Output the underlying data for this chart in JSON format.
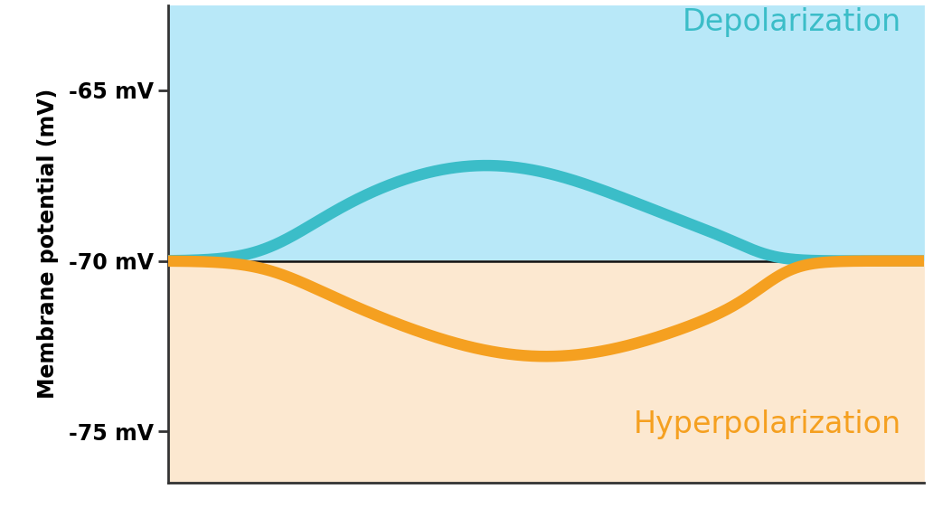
{
  "ylabel": "Membrane potential (mV)",
  "yticks": [
    -75,
    -70,
    -65
  ],
  "ytick_labels": [
    "-75 mV",
    "-70 mV",
    "-65 mV"
  ],
  "ylim": [
    -76.5,
    -62.5
  ],
  "xlim": [
    0,
    10
  ],
  "resting_potential": -70,
  "depolarization_color_fill": "#b8e8f8",
  "hyperpolarization_color_fill": "#fce8d0",
  "depolarization_line_color": "#3bbdc8",
  "hyperpolarization_line_color": "#f5a020",
  "baseline_color": "#111111",
  "depolarization_label": "Depolarization",
  "hyperpolarization_label": "Hyperpolarization",
  "depolarization_label_color": "#3bbdc8",
  "hyperpolarization_label_color": "#f5a020",
  "ylabel_fontsize": 17,
  "label_fontsize": 24,
  "tick_fontsize": 17,
  "background_color": "#ffffff",
  "line_width": 9
}
